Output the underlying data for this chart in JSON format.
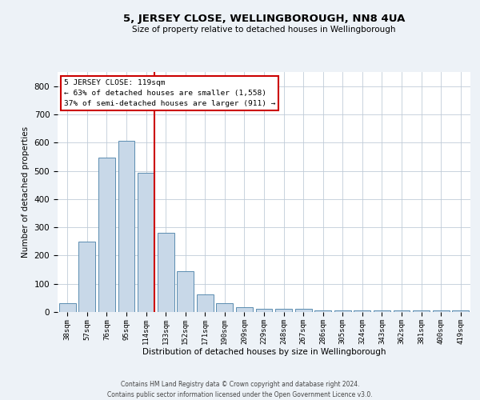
{
  "title": "5, JERSEY CLOSE, WELLINGBOROUGH, NN8 4UA",
  "subtitle": "Size of property relative to detached houses in Wellingborough",
  "xlabel": "Distribution of detached houses by size in Wellingborough",
  "ylabel": "Number of detached properties",
  "categories": [
    "38sqm",
    "57sqm",
    "76sqm",
    "95sqm",
    "114sqm",
    "133sqm",
    "152sqm",
    "171sqm",
    "190sqm",
    "209sqm",
    "229sqm",
    "248sqm",
    "267sqm",
    "286sqm",
    "305sqm",
    "324sqm",
    "343sqm",
    "362sqm",
    "381sqm",
    "400sqm",
    "419sqm"
  ],
  "values": [
    30,
    250,
    548,
    605,
    492,
    280,
    145,
    63,
    30,
    18,
    12,
    10,
    10,
    5,
    5,
    5,
    5,
    5,
    5,
    5,
    5
  ],
  "bar_color": "#c8d8e8",
  "bar_edge_color": "#5b8db0",
  "highlight_color": "#cc0000",
  "ylim": [
    0,
    850
  ],
  "yticks": [
    0,
    100,
    200,
    300,
    400,
    500,
    600,
    700,
    800
  ],
  "annotation_lines": [
    "5 JERSEY CLOSE: 119sqm",
    "← 63% of detached houses are smaller (1,558)",
    "37% of semi-detached houses are larger (911) →"
  ],
  "footer": "Contains HM Land Registry data © Crown copyright and database right 2024.\nContains public sector information licensed under the Open Government Licence v3.0.",
  "background_color": "#edf2f7",
  "plot_background_color": "#ffffff",
  "grid_color": "#c0ccd8"
}
